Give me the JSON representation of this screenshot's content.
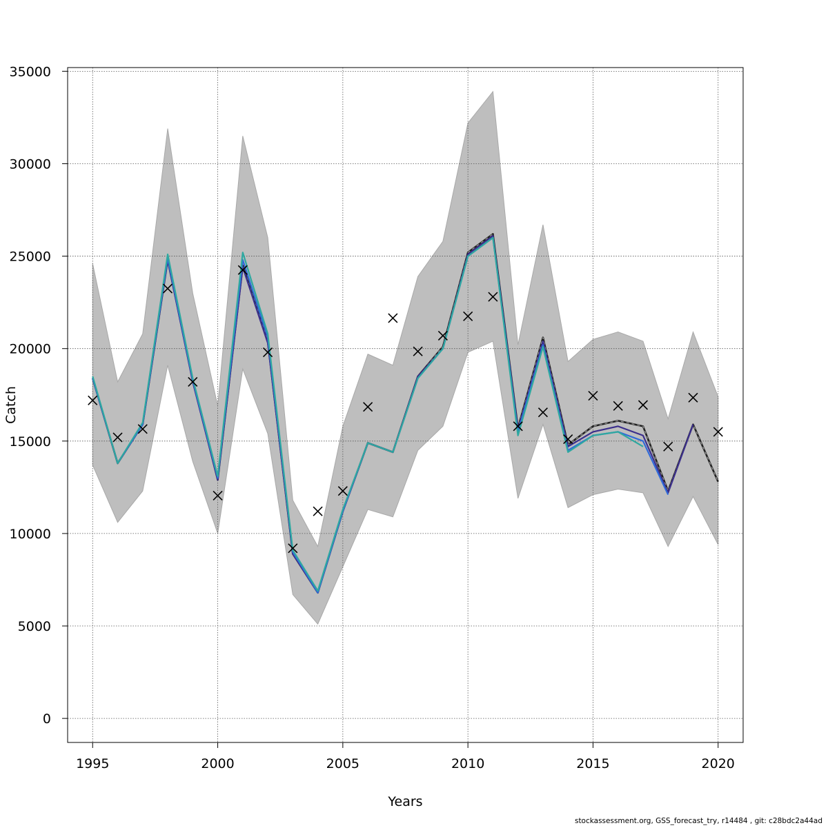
{
  "chart_data": {
    "type": "line",
    "title": "",
    "xlabel": "Years",
    "ylabel": "Catch",
    "xlim": [
      1994,
      2021
    ],
    "ylim": [
      -1300,
      35200
    ],
    "grid": true,
    "x_ticks": [
      1995,
      2000,
      2005,
      2010,
      2015,
      2020
    ],
    "y_ticks": [
      0,
      5000,
      10000,
      15000,
      20000,
      25000,
      30000,
      35000
    ],
    "confidence_band": {
      "color": "#bebebe",
      "x": [
        1995,
        1996,
        1997,
        1998,
        1999,
        2000,
        2001,
        2002,
        2003,
        2004,
        2005,
        2006,
        2007,
        2008,
        2009,
        2010,
        2011,
        2012,
        2013,
        2014,
        2015,
        2016,
        2017,
        2018,
        2019,
        2020
      ],
      "upper": [
        24600,
        18200,
        20800,
        31900,
        23000,
        16900,
        31500,
        26000,
        11800,
        9300,
        15800,
        19700,
        19100,
        23900,
        25800,
        32200,
        33900,
        20200,
        26700,
        19300,
        20500,
        20900,
        20400,
        16200,
        20900,
        17400
      ],
      "lower": [
        13700,
        10600,
        12300,
        19100,
        13900,
        10000,
        18900,
        15400,
        6700,
        5100,
        8200,
        11300,
        10900,
        14500,
        15800,
        19800,
        20400,
        11900,
        15900,
        11400,
        12100,
        12400,
        12200,
        9300,
        12000,
        9400
      ]
    },
    "series": [
      {
        "style": "dashed-black",
        "color": "#222222",
        "x": [
          1995,
          1996,
          1997,
          1998,
          1999,
          2000,
          2001,
          2002,
          2003,
          2004,
          2005,
          2006,
          2007,
          2008,
          2009,
          2010,
          2011,
          2012,
          2013,
          2014,
          2015,
          2016,
          2017,
          2018,
          2019,
          2020
        ],
        "values": [
          18400,
          13800,
          15900,
          24800,
          18300,
          12900,
          24500,
          20400,
          8900,
          6800,
          11200,
          14900,
          14400,
          18500,
          20100,
          25200,
          26200,
          15700,
          20600,
          14800,
          15800,
          16100,
          15800,
          12300,
          15900,
          12800
        ]
      },
      {
        "color": "#3b2e8c",
        "x": [
          1995,
          1996,
          1997,
          1998,
          1999,
          2000,
          2001,
          2002,
          2003,
          2004,
          2005,
          2006,
          2007,
          2008,
          2009,
          2010,
          2011,
          2012,
          2013,
          2014,
          2015,
          2016,
          2017,
          2018,
          2019
        ],
        "values": [
          18400,
          13800,
          15900,
          24800,
          18200,
          12900,
          24400,
          20300,
          8900,
          6800,
          11200,
          14900,
          14400,
          18500,
          20000,
          25100,
          26100,
          15600,
          20400,
          14700,
          15500,
          15800,
          15300,
          12200,
          15900
        ]
      },
      {
        "color": "#2f6ad9",
        "x": [
          1995,
          1996,
          1997,
          1998,
          1999,
          2000,
          2001,
          2002,
          2003,
          2004,
          2005,
          2006,
          2007,
          2008,
          2009,
          2010,
          2011,
          2012,
          2013,
          2014,
          2015,
          2016,
          2017,
          2018
        ],
        "values": [
          18400,
          13800,
          15900,
          24900,
          18300,
          13000,
          24800,
          20600,
          9000,
          6800,
          11200,
          14900,
          14400,
          18400,
          20000,
          25000,
          26000,
          15500,
          20200,
          14500,
          15300,
          15500,
          15000,
          12100
        ]
      },
      {
        "color": "#2ea8a0",
        "x": [
          1995,
          1996,
          1997,
          1998,
          1999,
          2000,
          2001,
          2002,
          2003,
          2004,
          2005,
          2006,
          2007,
          2008,
          2009,
          2010,
          2011,
          2012,
          2013,
          2014,
          2015,
          2016,
          2017
        ],
        "values": [
          18500,
          13800,
          16000,
          25100,
          18400,
          13100,
          25200,
          20800,
          9100,
          6900,
          11300,
          14900,
          14400,
          18400,
          20000,
          25000,
          26000,
          15300,
          20100,
          14400,
          15300,
          15500,
          14700
        ]
      }
    ],
    "observed_points": {
      "marker": "x",
      "color": "#000000",
      "x": [
        1995,
        1996,
        1997,
        1998,
        1999,
        2000,
        2001,
        2002,
        2003,
        2004,
        2005,
        2006,
        2007,
        2008,
        2009,
        2010,
        2011,
        2012,
        2013,
        2014,
        2015,
        2016,
        2017,
        2018,
        2019,
        2020
      ],
      "y": [
        17200,
        15200,
        15650,
        23250,
        18200,
        12050,
        24250,
        19800,
        9200,
        11200,
        12300,
        16850,
        21650,
        19850,
        20700,
        21750,
        22800,
        15800,
        16550,
        15100,
        17450,
        16900,
        16950,
        14700,
        17350,
        15500
      ]
    }
  },
  "footer": {
    "note": "stockassessment.org, GSS_forecast_try, r14484 , git: c28bdc2a44ad"
  }
}
